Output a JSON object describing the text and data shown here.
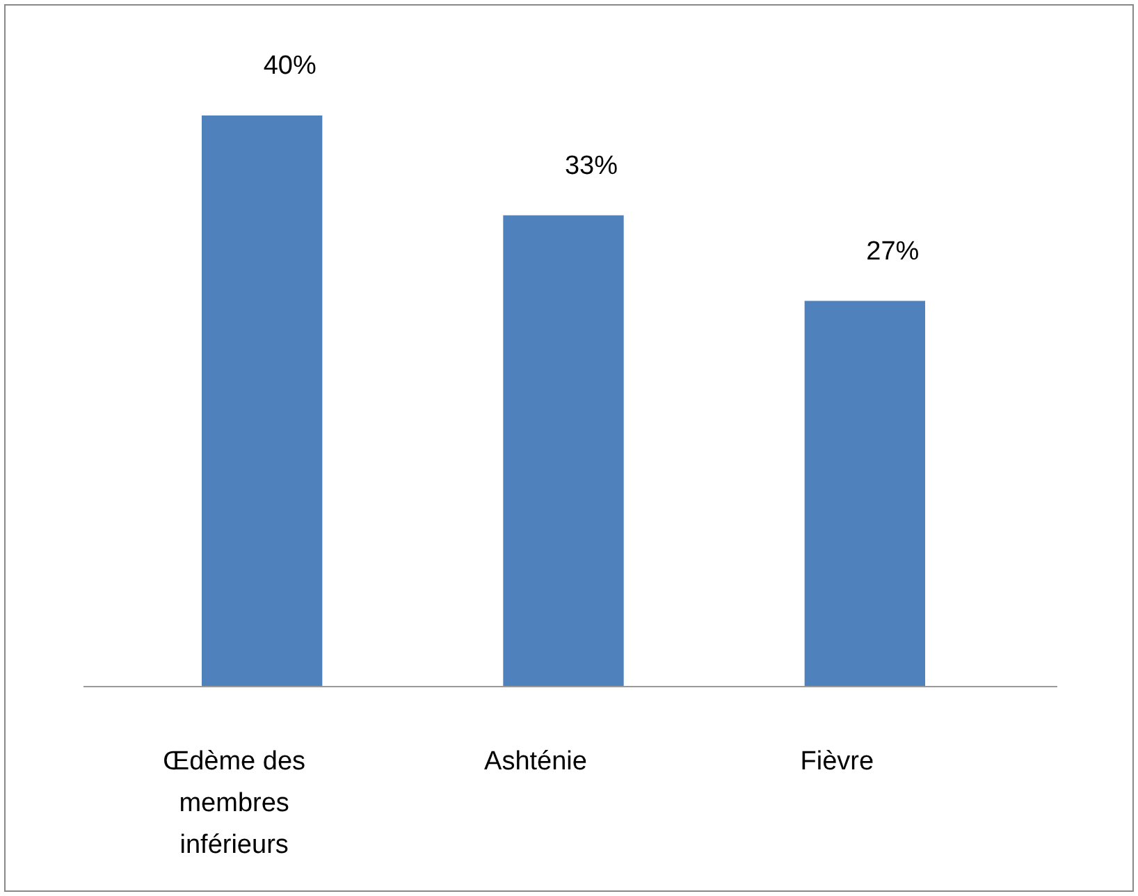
{
  "chart_data": {
    "type": "bar",
    "categories": [
      "Œdème des membres inférieurs",
      "Ashténie",
      "Fièvre"
    ],
    "values": [
      40,
      33,
      27
    ],
    "value_labels": [
      "40%",
      "33%",
      "27%"
    ],
    "color": "#4f81bd",
    "relative": false
  }
}
